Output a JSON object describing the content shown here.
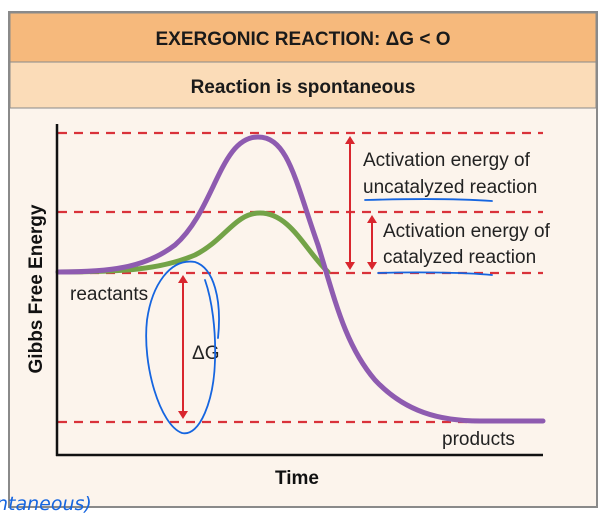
{
  "header": {
    "title": "EXERGONIC REACTION: ΔG < O",
    "subtitle": "Reaction is spontaneous"
  },
  "axes": {
    "ylabel": "Gibbs Free Energy",
    "xlabel": "Time"
  },
  "labels": {
    "reactants": "reactants",
    "products": "products",
    "delta_g": "ΔG",
    "uncatalyzed_line1": "Activation energy of",
    "uncatalyzed_line2": "uncatalyzed reaction",
    "catalyzed_line1": "Activation energy of",
    "catalyzed_line2": "catalyzed reaction"
  },
  "handwritten_annotation": "ntaneous)",
  "colors": {
    "header_bg": "#f6b97c",
    "subheader_bg": "#fbdcb8",
    "body_bg": "#fcf4ec",
    "uncatalyzed_curve": "#8e5bb0",
    "catalyzed_curve": "#73a347",
    "arrow": "#d9262e",
    "dashed_line": "#d9323a",
    "ink": "#1565e0"
  }
}
